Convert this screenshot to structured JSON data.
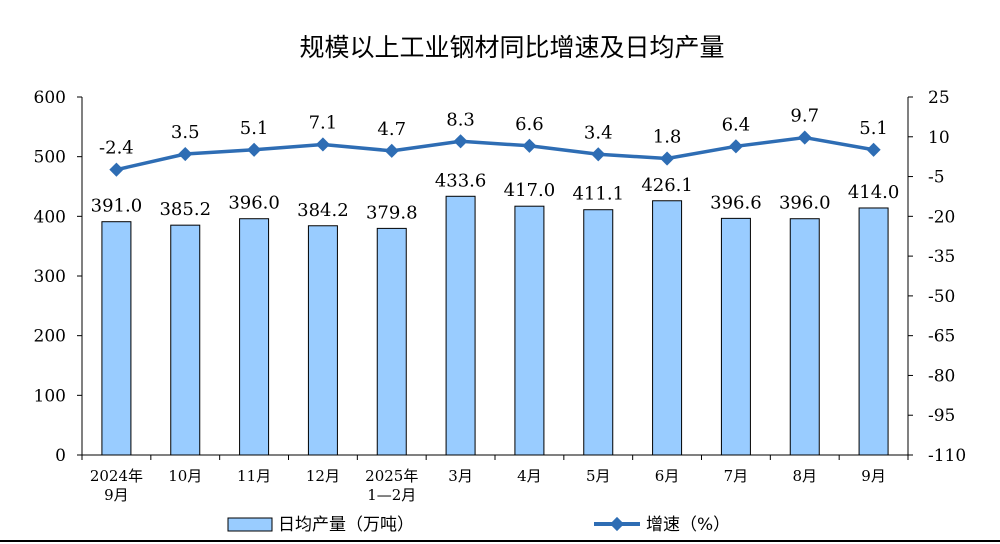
{
  "chart_data": {
    "type": "bar",
    "title": "规模以上工业钢材同比增速及日均产量",
    "categories": [
      [
        "2024年",
        "9月"
      ],
      [
        "10月"
      ],
      [
        "11月"
      ],
      [
        "12月"
      ],
      [
        "2025年",
        "1—2月"
      ],
      [
        "3月"
      ],
      [
        "4月"
      ],
      [
        "5月"
      ],
      [
        "6月"
      ],
      [
        "7月"
      ],
      [
        "8月"
      ],
      [
        "9月"
      ]
    ],
    "series": [
      {
        "name": "日均产量（万吨）",
        "type": "bar",
        "axis": "left",
        "color": "#99CCFF",
        "values": [
          391.0,
          385.2,
          396.0,
          384.2,
          379.8,
          433.6,
          417.0,
          411.1,
          426.1,
          396.6,
          396.0,
          414.0
        ],
        "labels": [
          "391.0",
          "385.2",
          "396.0",
          "384.2",
          "379.8",
          "433.6",
          "417.0",
          "411.1",
          "426.1",
          "396.6",
          "396.0",
          "414.0"
        ]
      },
      {
        "name": "增速（%）",
        "type": "line",
        "axis": "right",
        "color": "#2E6DB4",
        "values": [
          -2.4,
          3.5,
          5.1,
          7.1,
          4.7,
          8.3,
          6.6,
          3.4,
          1.8,
          6.4,
          9.7,
          5.1
        ],
        "labels": [
          "-2.4",
          "3.5",
          "5.1",
          "7.1",
          "4.7",
          "8.3",
          "6.6",
          "3.4",
          "1.8",
          "6.4",
          "9.7",
          "5.1"
        ]
      }
    ],
    "y_left": {
      "min": 0,
      "max": 600,
      "ticks": [
        "0",
        "100",
        "200",
        "300",
        "400",
        "500",
        "600"
      ]
    },
    "y_right": {
      "min": -110,
      "max": 25,
      "ticks": [
        "-110",
        "-95",
        "-80",
        "-65",
        "-50",
        "-35",
        "-20",
        "-5",
        "10",
        "25"
      ]
    },
    "grid": false,
    "legend": {
      "placement": "bottom"
    }
  }
}
